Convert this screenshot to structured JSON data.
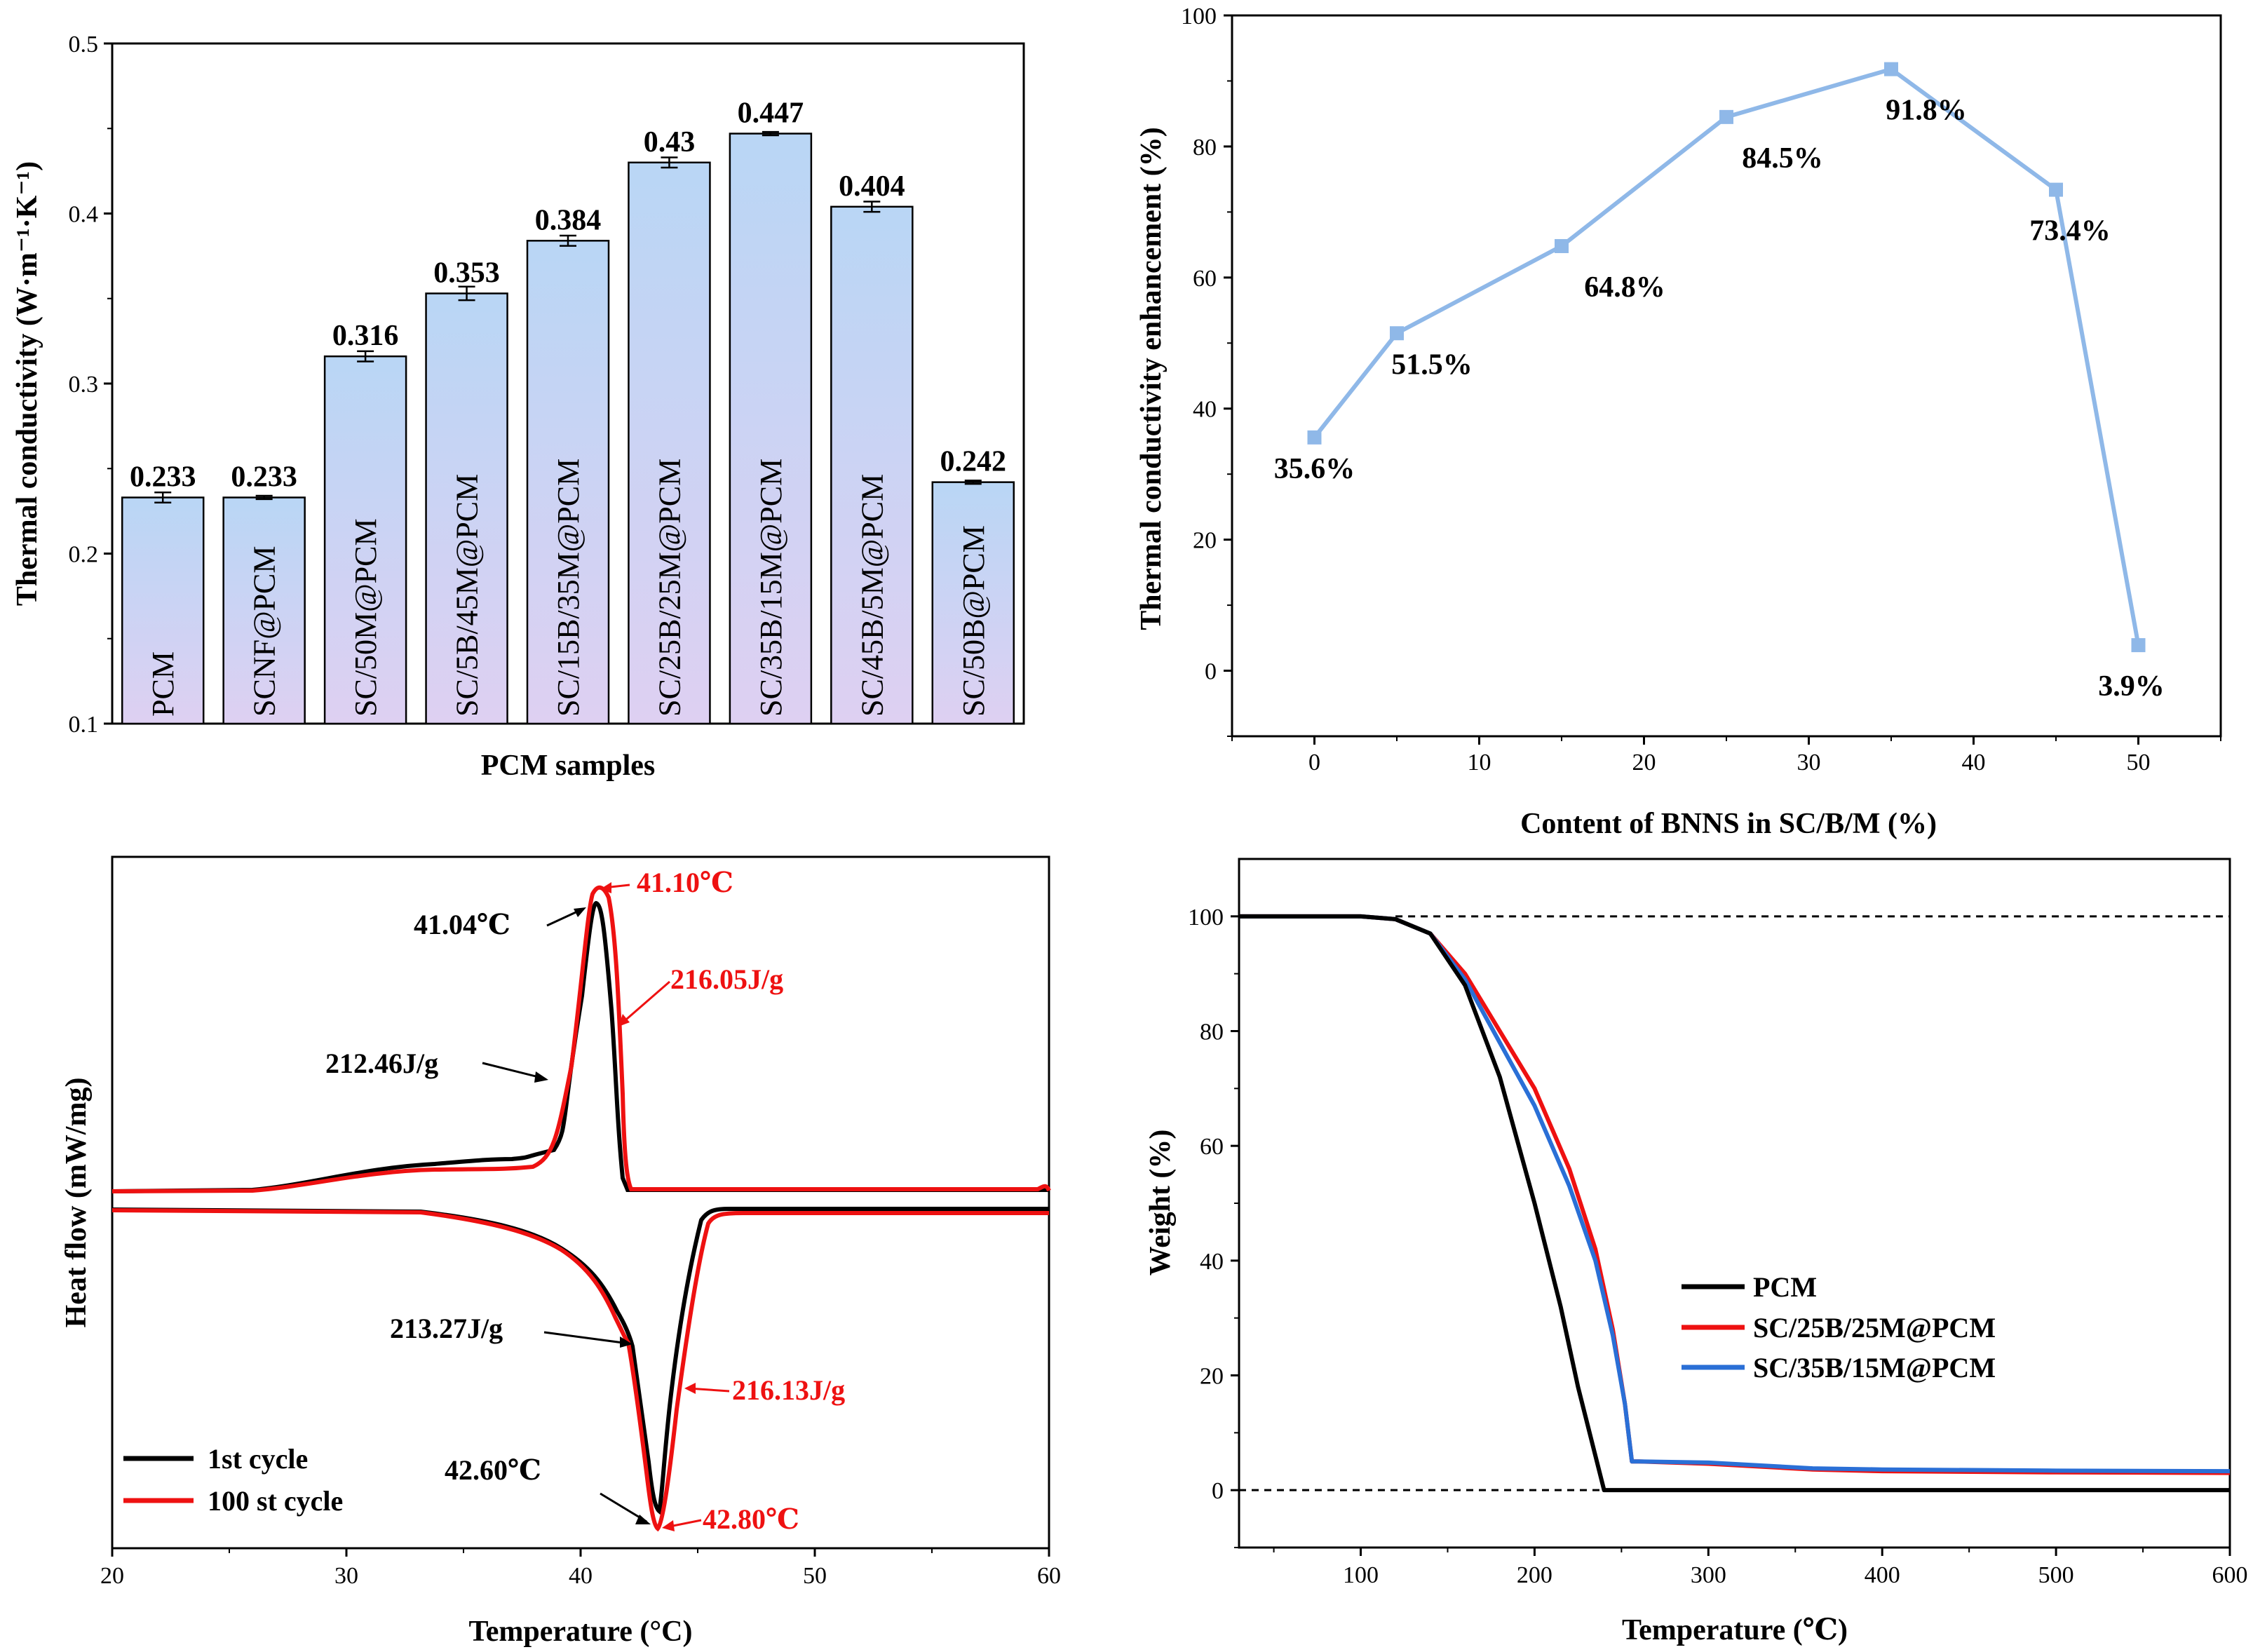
{
  "chart_data": [
    {
      "type": "bar",
      "categories": [
        "PCM",
        "SCNF@PCM",
        "SC/50M@PCM",
        "SC/5B/45M@PCM",
        "SC/15B/35M@PCM",
        "SC/25B/25M@PCM",
        "SC/35B/15M@PCM",
        "SC/45B/5M@PCM",
        "SC/50B@PCM"
      ],
      "values": [
        0.233,
        0.233,
        0.316,
        0.353,
        0.384,
        0.43,
        0.447,
        0.404,
        0.242
      ],
      "value_labels": [
        "0.233",
        "0.233",
        "0.316",
        "0.353",
        "0.384",
        "0.43",
        "0.447",
        "0.404",
        "0.242"
      ],
      "errors": [
        0.003,
        0.001,
        0.003,
        0.004,
        0.003,
        0.003,
        0.001,
        0.003,
        0.001
      ],
      "xlabel": "PCM samples",
      "ylabel": "Thermal conductivity (W·m⁻¹·K⁻¹)",
      "ylim": [
        0.1,
        0.5
      ],
      "yticks": [
        "0.1",
        "0.2",
        "0.3",
        "0.4",
        "0.5"
      ],
      "bar_gradient": [
        "#b9d6f5",
        "#ded0f2"
      ]
    },
    {
      "type": "line",
      "x": [
        0,
        5,
        15,
        25,
        35,
        45,
        50
      ],
      "y": [
        35.6,
        51.5,
        64.8,
        84.5,
        91.8,
        73.4,
        3.9
      ],
      "point_labels": [
        "35.6%",
        "51.5%",
        "64.8%",
        "84.5%",
        "91.8%",
        "73.4%",
        "3.9%"
      ],
      "xlabel": "Content of BNNS in SC/B/M (%)",
      "ylabel": "Thermal conductivity enhancement (%)",
      "xlim": [
        -5,
        55
      ],
      "ylim": [
        -10,
        100
      ],
      "xticks": [
        "0",
        "10",
        "20",
        "30",
        "40",
        "50"
      ],
      "yticks": [
        "0",
        "20",
        "40",
        "60",
        "80",
        "100"
      ],
      "color": "#8fb8e8"
    },
    {
      "type": "line",
      "xlabel": "Temperature (°C)",
      "ylabel": "Heat flow (mW/mg)",
      "xlim": [
        20,
        60
      ],
      "xticks": [
        "20",
        "30",
        "40",
        "50",
        "60"
      ],
      "series": [
        {
          "name": "1st cycle",
          "color": "#000000"
        },
        {
          "name": "100 st cycle",
          "color": "#ee1111"
        }
      ],
      "annotations": [
        {
          "text": "41.04℃",
          "color": "#000000"
        },
        {
          "text": "41.10℃",
          "color": "#ee1111"
        },
        {
          "text": "212.46J/g",
          "color": "#000000"
        },
        {
          "text": "216.05J/g",
          "color": "#ee1111"
        },
        {
          "text": "213.27J/g",
          "color": "#000000"
        },
        {
          "text": "216.13J/g",
          "color": "#ee1111"
        },
        {
          "text": "42.60℃",
          "color": "#000000"
        },
        {
          "text": "42.80℃",
          "color": "#ee1111"
        }
      ],
      "legend": "bottom-left"
    },
    {
      "type": "line",
      "xlabel": "Temperature (℃)",
      "ylabel": "Weight (%)",
      "xlim": [
        30,
        600
      ],
      "ylim": [
        -10,
        110
      ],
      "xticks": [
        "100",
        "200",
        "300",
        "400",
        "500",
        "600"
      ],
      "yticks": [
        "0",
        "20",
        "40",
        "60",
        "80",
        "100"
      ],
      "series": [
        {
          "name": "PCM",
          "color": "#000000",
          "x": [
            30,
            100,
            120,
            140,
            160,
            180,
            200,
            215,
            225,
            235,
            240,
            250,
            300,
            400,
            500,
            600
          ],
          "y": [
            100,
            100,
            99.5,
            97,
            88,
            72,
            50,
            32,
            18,
            6,
            0,
            0,
            0,
            0,
            0,
            0
          ]
        },
        {
          "name": "SC/25B/25M@PCM",
          "color": "#ee1111",
          "x": [
            30,
            100,
            120,
            140,
            160,
            180,
            200,
            220,
            235,
            245,
            252,
            256,
            260,
            300,
            360,
            400,
            500,
            600
          ],
          "y": [
            100,
            100,
            99.5,
            97,
            90,
            80,
            70,
            56,
            42,
            28,
            15,
            5,
            5,
            4.6,
            3.6,
            3.3,
            3.1,
            3.0
          ]
        },
        {
          "name": "SC/35B/15M@PCM",
          "color": "#2a6fd6",
          "x": [
            30,
            100,
            120,
            140,
            160,
            180,
            200,
            220,
            235,
            245,
            252,
            256,
            260,
            300,
            360,
            400,
            500,
            600
          ],
          "y": [
            100,
            100,
            99.5,
            97,
            89,
            78,
            67,
            53,
            40,
            27,
            15,
            5,
            5,
            4.8,
            3.8,
            3.6,
            3.4,
            3.3
          ]
        }
      ],
      "legend": "center-right"
    }
  ]
}
